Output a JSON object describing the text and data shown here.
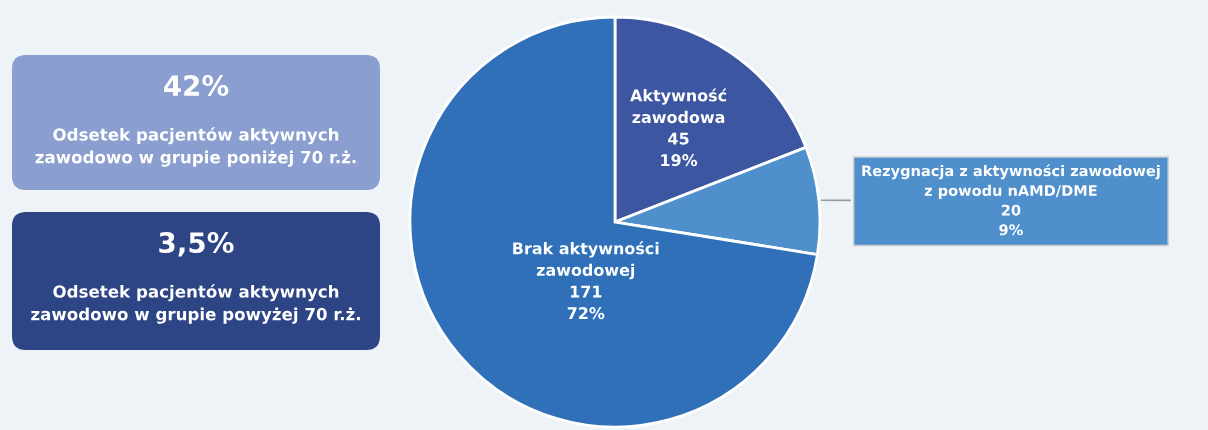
{
  "chart_data": {
    "type": "pie",
    "categories": [
      "Aktywność\nzawodowa",
      "Rezygnacja z aktywności zawodowej\nz powodu nAMD/DME",
      "Brak aktywności\nzawodowej"
    ],
    "values": [
      45,
      20,
      171
    ],
    "value_labels": [
      "45\n19%",
      "20\n9%",
      "171\n72%"
    ],
    "colors": [
      "#3c56a2",
      "#4f8fcc",
      "#2f70b8"
    ],
    "annotations": [
      "42%",
      "Odsetek pacjentów aktywnych\nzawodowo w grupie poniżej 70 r.ż.",
      "3,5%",
      "Odsetek pacjentów aktywnych\nzawodowo w grupie powyżej 70 r.ż."
    ]
  }
}
